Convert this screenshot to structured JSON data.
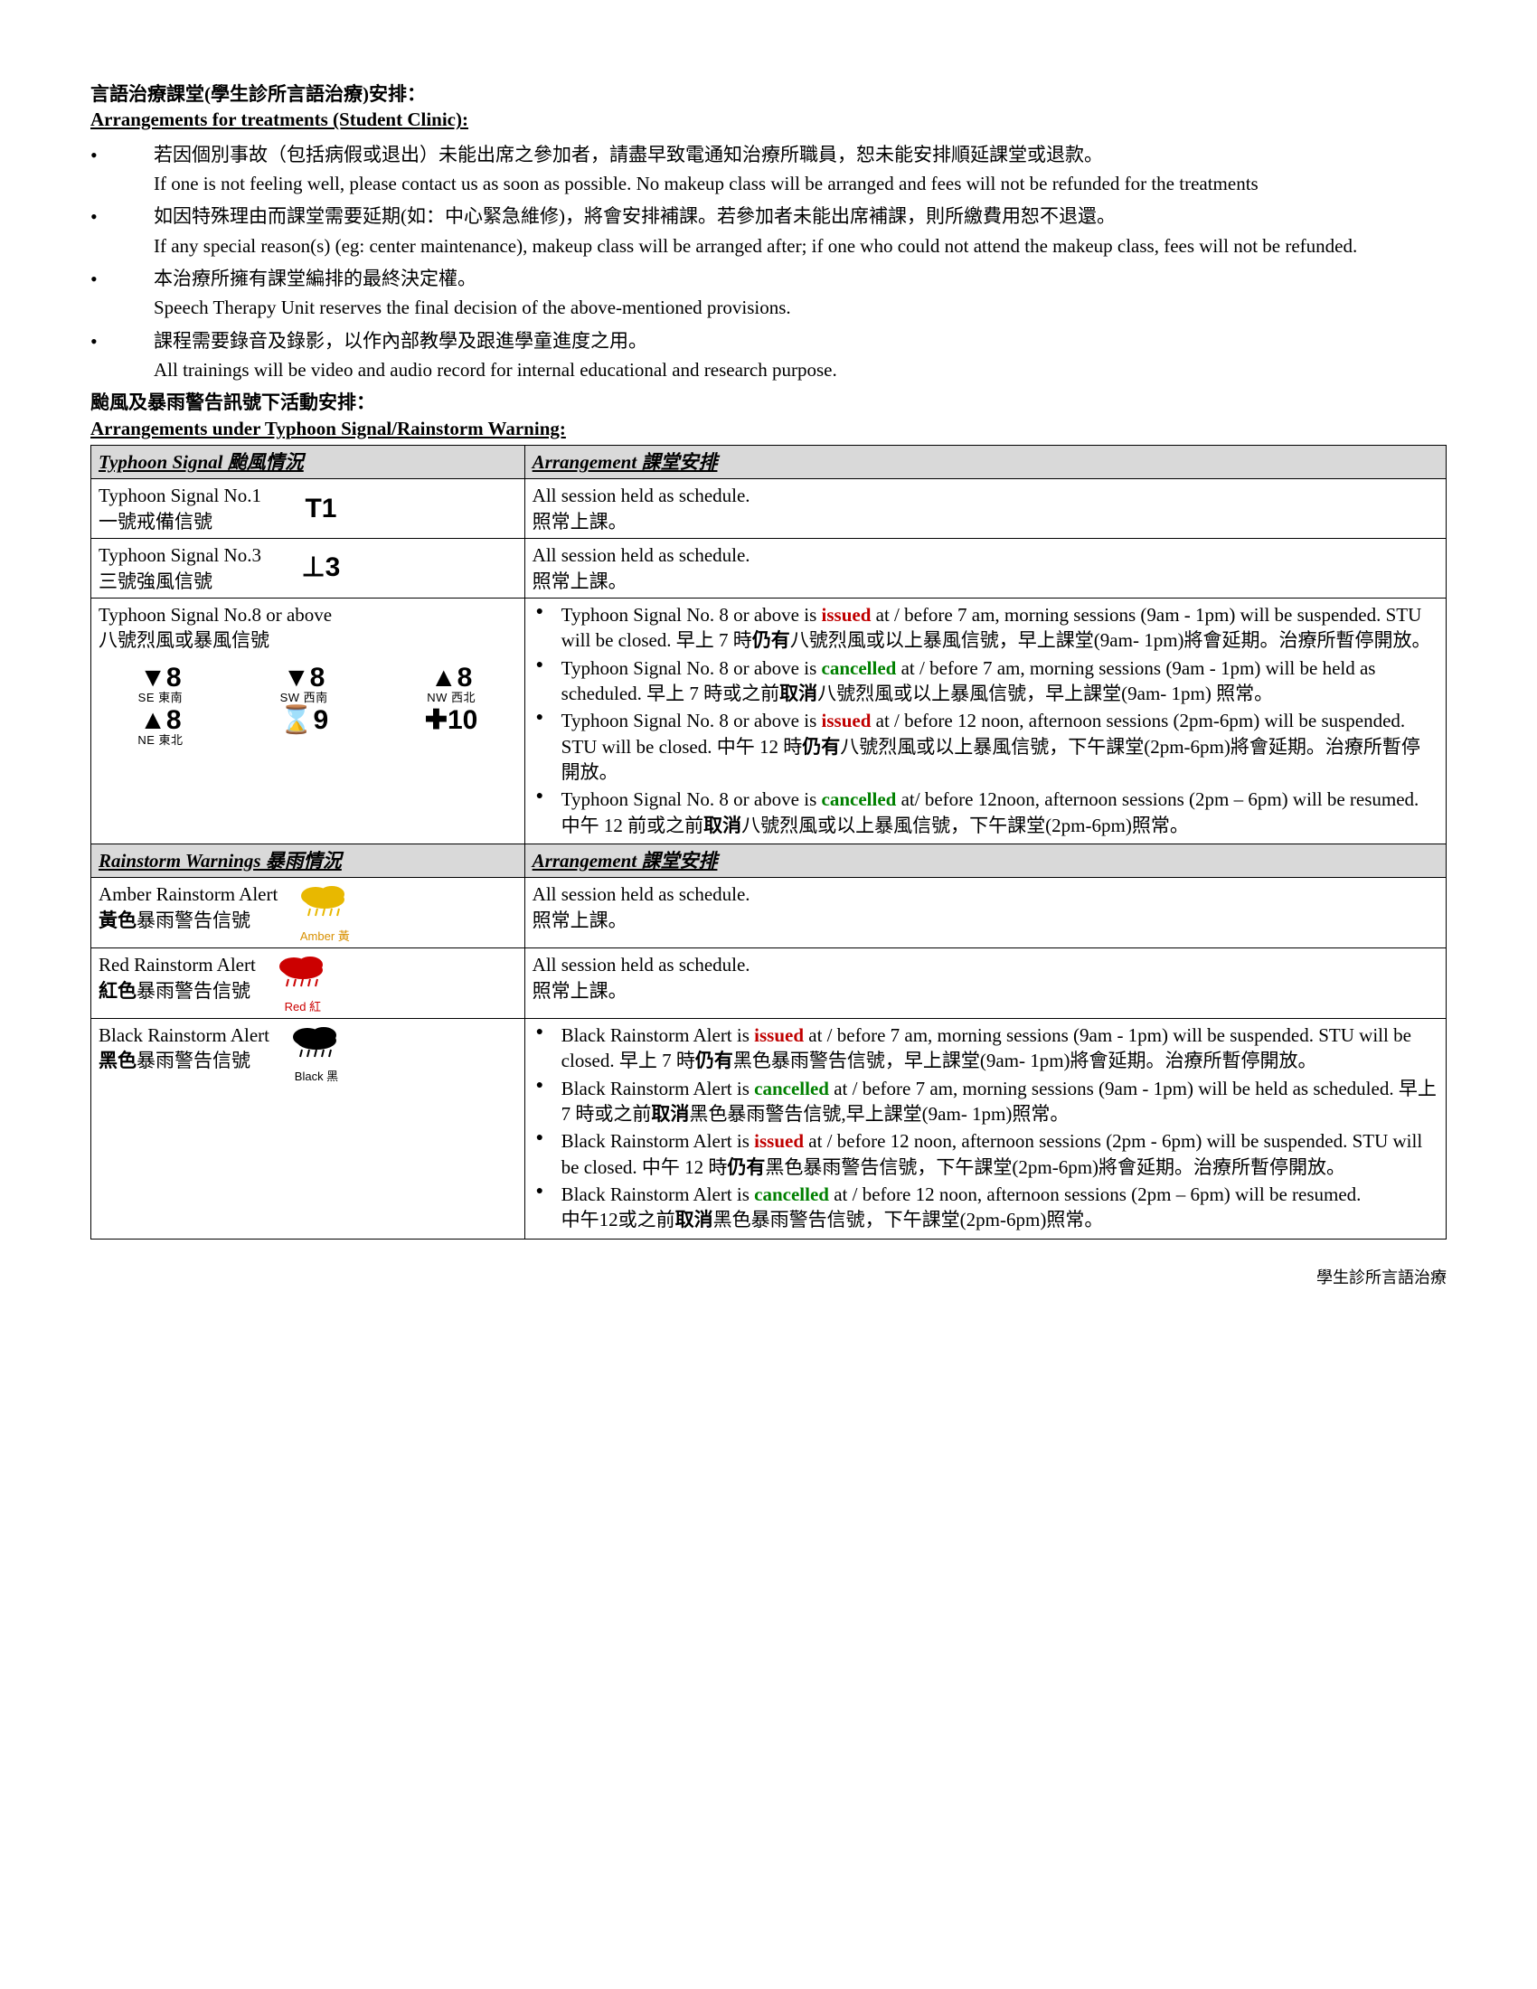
{
  "header": {
    "title_zh": "言語治療課堂(學生診所言語治療)安排：",
    "title_en": "Arrangements for treatments (Student Clinic):"
  },
  "bullets": [
    {
      "zh": "若因個別事故（包括病假或退出）未能出席之參加者，請盡早致電通知治療所職員，恕未能安排順延課堂或退款。",
      "en": "If one is not feeling well, please contact us as soon as possible. No makeup class will be arranged and fees will not be refunded for the treatments"
    },
    {
      "zh": "如因特殊理由而課堂需要延期(如：中心緊急維修)，將會安排補課。若參加者未能出席補課，則所繳費用恕不退還。",
      "en": "If any special reason(s) (eg: center maintenance), makeup class will be arranged after; if one who could not attend the makeup class, fees will not be refunded."
    },
    {
      "zh": "本治療所擁有課堂編排的最終決定權。",
      "en": "Speech Therapy Unit reserves the final decision of the above-mentioned provisions."
    },
    {
      "zh": "課程需要錄音及錄影，以作內部教學及跟進學童進度之用。",
      "en": "All trainings will be video and audio record for internal educational and research purpose."
    }
  ],
  "section2": {
    "title_zh": "颱風及暴雨警告訊號下活動安排：",
    "title_en": "Arrangements under Typhoon Signal/Rainstorm Warning:"
  },
  "table": {
    "header1_left": "Typhoon Signal  颱風情況",
    "header1_right": "Arrangement  課堂安排",
    "t1": {
      "left_en": "Typhoon Signal No.1",
      "left_zh": "一號戒備信號",
      "icon": "T1",
      "right_en": "All session held as schedule.",
      "right_zh": "照常上課。"
    },
    "t3": {
      "left_en": "Typhoon Signal No.3",
      "left_zh": "三號強風信號",
      "icon": "⊥3",
      "right_en": "All session held as schedule.",
      "right_zh": "照常上課。"
    },
    "t8": {
      "left_en": "Typhoon Signal No.8 or above",
      "left_zh": "八號烈風或暴風信號",
      "icons": [
        {
          "sym": "▼8",
          "sub": "SE 東南"
        },
        {
          "sym": "▼8",
          "sub": "SW 西南"
        },
        {
          "sym": "▲8",
          "sub": "NW 西北"
        },
        {
          "sym": "▲8",
          "sub": "NE 東北"
        },
        {
          "sym": "⌛9",
          "sub": ""
        },
        {
          "sym": "✚10",
          "sub": ""
        }
      ],
      "items": [
        {
          "pre": "Typhoon Signal No. 8 or above is ",
          "kw": "issued",
          "kw_class": "issued",
          "post": " at / before 7 am, morning sessions (9am - 1pm) will be suspended. STU will be closed. 早上 7 時",
          "b": "仍有",
          "post2": "八號烈風或以上暴風信號，早上課堂(9am- 1pm)將會延期。治療所暫停開放。"
        },
        {
          "pre": "Typhoon Signal No. 8 or above is ",
          "kw": "cancelled",
          "kw_class": "cancelled",
          "post": " at / before 7 am, morning sessions (9am - 1pm) will be held as scheduled. 早上 7 時或之前",
          "b": "取消",
          "post2": "八號烈風或以上暴風信號，早上課堂(9am- 1pm) 照常。"
        },
        {
          "pre": "Typhoon Signal No. 8 or above is ",
          "kw": "issued",
          "kw_class": "issued",
          "post": " at / before 12 noon, afternoon sessions (2pm-6pm) will be suspended. STU will be closed. 中午 12 時",
          "b": "仍有",
          "post2": "八號烈風或以上暴風信號，下午課堂(2pm-6pm)將會延期。治療所暫停開放。"
        },
        {
          "pre": "Typhoon Signal No. 8 or above is ",
          "kw": "cancelled",
          "kw_class": "cancelled",
          "post": " at/ before 12noon, afternoon sessions (2pm – 6pm) will be resumed. 中午 12 前或之前",
          "b": "取消",
          "post2": "八號烈風或以上暴風信號，下午課堂(2pm-6pm)照常。"
        }
      ]
    },
    "header2_left": "Rainstorm Warnings  暴雨情況",
    "header2_right": "Arrangement  課堂安排",
    "amber": {
      "left_en": "Amber Rainstorm Alert",
      "left_zh_pre": "黃色",
      "left_zh_post": "暴雨警告信號",
      "icon_color": "#e8b800",
      "icon_label": "Amber 黃",
      "label_color": "#d89000",
      "right_en": "All session held as schedule.",
      "right_zh": "照常上課。"
    },
    "red": {
      "left_en": "Red Rainstorm Alert",
      "left_zh_pre": "紅色",
      "left_zh_post": "暴雨警告信號",
      "icon_color": "#cc0000",
      "icon_label": "Red 紅",
      "label_color": "#cc0000",
      "right_en": "All session held as schedule.",
      "right_zh": "照常上課。"
    },
    "black": {
      "left_en": "Black Rainstorm Alert",
      "left_zh_pre": "黑色",
      "left_zh_post": "暴雨警告信號",
      "icon_color": "#000000",
      "icon_label": "Black 黑",
      "label_color": "#000000",
      "items": [
        {
          "pre": "Black Rainstorm Alert is ",
          "kw": "issued",
          "kw_class": "issued",
          "post": " at / before 7 am, morning sessions (9am - 1pm) will be suspended. STU will be closed. 早上 7 時",
          "b": "仍有",
          "post2": "黑色暴雨警告信號，早上課堂(9am- 1pm)將會延期。治療所暫停開放。"
        },
        {
          "pre": "Black Rainstorm Alert is ",
          "kw": "cancelled",
          "kw_class": "cancelled",
          "post": " at / before 7 am, morning sessions (9am - 1pm) will be held as scheduled. 早上 7 時或之前",
          "b": "取消",
          "post2": "黑色暴雨警告信號,早上課堂(9am- 1pm)照常。"
        },
        {
          "pre": "Black Rainstorm Alert is ",
          "kw": "issued",
          "kw_class": "issued",
          "post": " at / before 12 noon, afternoon sessions (2pm - 6pm) will be suspended. STU will be closed. 中午 12 時",
          "b": "仍有",
          "post2": "黑色暴雨警告信號，下午課堂(2pm-6pm)將會延期。治療所暫停開放。"
        },
        {
          "pre": "Black Rainstorm Alert is ",
          "kw": "cancelled",
          "kw_class": "cancelled",
          "post": " at / before 12 noon, afternoon sessions (2pm – 6pm) will be resumed.",
          "b": "",
          "post2": "",
          "line2": "中午12或之前",
          "b2": "取消",
          "post3": "黑色暴雨警告信號，下午課堂(2pm-6pm)照常。"
        }
      ]
    }
  },
  "footer": "學生診所言語治療"
}
